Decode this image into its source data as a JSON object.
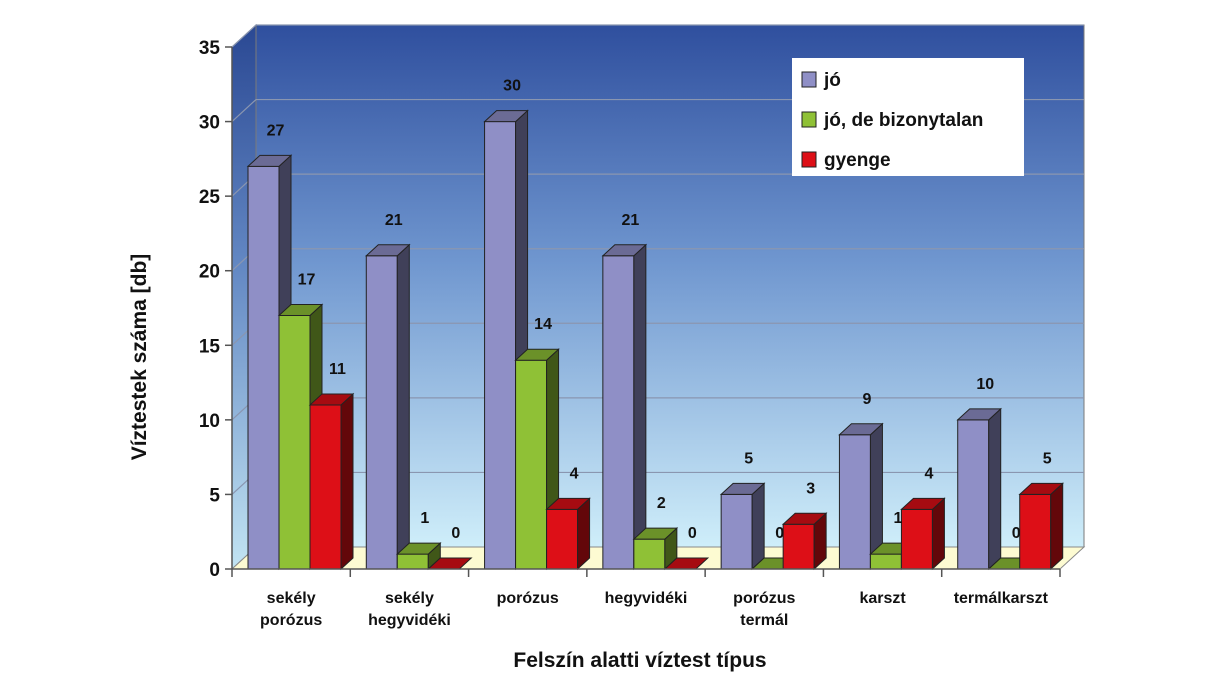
{
  "chart_data": {
    "type": "bar",
    "title": "",
    "xlabel": "Felszín alatti víztest típus",
    "ylabel": "Víztestek száma [db]",
    "ylim": [
      0,
      35
    ],
    "yticks": [
      0,
      5,
      10,
      15,
      20,
      25,
      30,
      35
    ],
    "categories": [
      [
        "sekély",
        "porózus"
      ],
      [
        "sekély",
        "hegyvidéki"
      ],
      [
        "porózus"
      ],
      [
        "hegyvidéki"
      ],
      [
        "porózus",
        "termál"
      ],
      [
        "karszt"
      ],
      [
        "termálkarszt"
      ]
    ],
    "series": [
      {
        "name": "jó",
        "color": "#8f8fc6",
        "values": [
          27,
          21,
          30,
          21,
          5,
          9,
          10
        ]
      },
      {
        "name": "jó, de bizonytalan",
        "color": "#8fc136",
        "values": [
          17,
          1,
          14,
          2,
          0,
          1,
          0
        ]
      },
      {
        "name": "gyenge",
        "color": "#dd0f17",
        "values": [
          11,
          0,
          4,
          0,
          3,
          4,
          5
        ]
      }
    ],
    "legend_position": "top-right",
    "grid": true,
    "style": "3d"
  }
}
